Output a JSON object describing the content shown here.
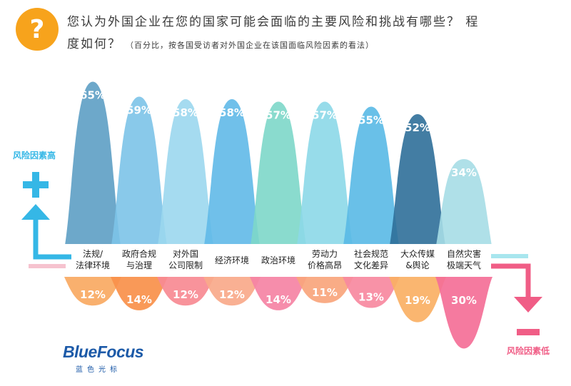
{
  "title_line1": "您认为外国企业在您的国家可能会面临的主要风险和挑战有哪些？ 程",
  "title_line2": "度如何？",
  "subtitle": "（百分比，按各国受访者对外国企业在该国面临风险因素的看法）",
  "icon_glyph": "?",
  "logo": {
    "main": "BlueFocus",
    "sub": "蓝色光标"
  },
  "legend": {
    "high": "风险因素高",
    "low": "风险因素低"
  },
  "colors": {
    "up_arrow": "#35b7e6",
    "down_arrow": "#f05d86",
    "icon": "#f7a31c"
  },
  "chart_data": {
    "type": "bar",
    "categories": [
      "法规/法律环境",
      "政府合规与治理",
      "对外国公司限制",
      "经济环境",
      "政治环境",
      "劳动力价格高昂",
      "社会规范文化差异",
      "大众传媒&舆论",
      "自然灾害极端天气"
    ],
    "category_lines": [
      [
        "法规/",
        "法律环境"
      ],
      [
        "政府合规",
        "与治理"
      ],
      [
        "对外国",
        "公司限制"
      ],
      [
        "经济环境"
      ],
      [
        "政治环境"
      ],
      [
        "劳动力",
        "价格高昂"
      ],
      [
        "社会规范",
        "文化差异"
      ],
      [
        "大众传媒",
        "&舆论"
      ],
      [
        "自然灾害",
        "极端天气"
      ]
    ],
    "series": [
      {
        "name": "风险因素高",
        "values": [
          65,
          59,
          58,
          58,
          57,
          57,
          55,
          52,
          34
        ],
        "labels": [
          "65%",
          "59%",
          "58%",
          "58%",
          "57%",
          "57%",
          "55%",
          "52%",
          "34%"
        ],
        "colors": [
          "#5d9ec4",
          "#7cc3e8",
          "#9bd7ee",
          "#61b9e8",
          "#7dd7c9",
          "#8cd8e8",
          "#59b9e6",
          "#2f6f99",
          "#a6dde6"
        ]
      },
      {
        "name": "风险因素低",
        "values": [
          12,
          14,
          12,
          12,
          14,
          11,
          13,
          19,
          30
        ],
        "labels": [
          "12%",
          "14%",
          "12%",
          "12%",
          "14%",
          "11%",
          "13%",
          "19%",
          "30%"
        ],
        "colors": [
          "#f9a962",
          "#f8904a",
          "#f78a92",
          "#f9a98a",
          "#f583a4",
          "#f9a57c",
          "#f7899f",
          "#fab064",
          "#f46f97"
        ]
      }
    ]
  }
}
